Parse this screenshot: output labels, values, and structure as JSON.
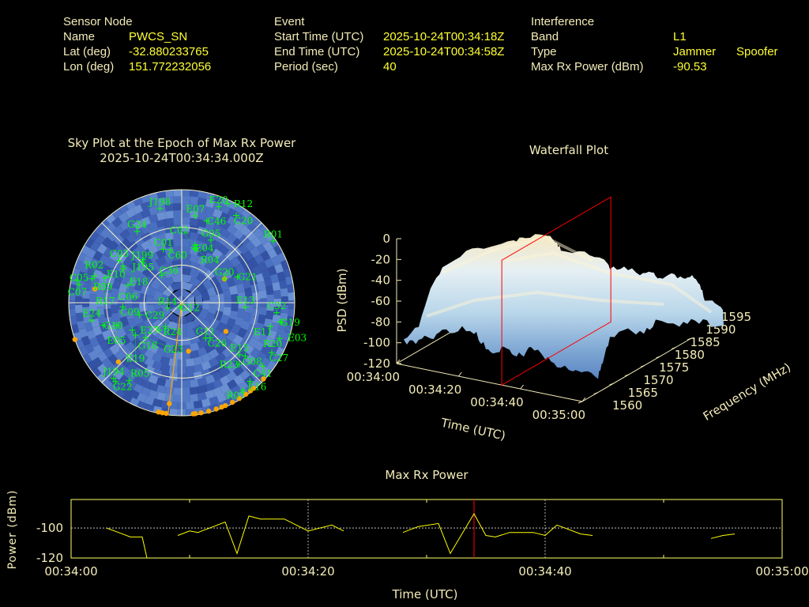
{
  "header": {
    "sensor": {
      "title": "Sensor Node",
      "name_label": "Name",
      "name": "PWCS_SN",
      "lat_label": "Lat (deg)",
      "lat": "-32.880233765",
      "lon_label": "Lon (deg)",
      "lon": "151.772232056"
    },
    "event": {
      "title": "Event",
      "start_label": "Start Time (UTC)",
      "start": "2025-10-24T00:34:18Z",
      "end_label": "End Time (UTC)",
      "end": "2025-10-24T00:34:58Z",
      "period_label": "Period (sec)",
      "period": "40"
    },
    "interference": {
      "title": "Interference",
      "band_label": "Band",
      "band": "L1",
      "type_label": "Type",
      "type_jammer": "Jammer",
      "type_spoofer": "Spoofer",
      "power_label": "Max Rx Power (dBm)",
      "power": "-90.53"
    }
  },
  "colors": {
    "label": "#f3ecb8",
    "value": "#ffff33",
    "satellite": "#00ff00",
    "interference": "#ffa500",
    "epoch_marker": "#ff0000",
    "sky_background": "#4a6fc0"
  },
  "skyplot": {
    "title": "Sky Plot at the Epoch of Max Rx Power",
    "epoch": "2025-10-24T00:34:34.000Z",
    "elevation_rings": [
      0,
      30,
      60
    ],
    "direction_line_az": 187,
    "satellites": [
      {
        "id": "J198",
        "az": 347,
        "el": 13
      },
      {
        "id": "E07",
        "az": 9,
        "el": 20
      },
      {
        "id": "C46",
        "az": 17,
        "el": 22
      },
      {
        "id": "E20",
        "az": 21,
        "el": 8
      },
      {
        "id": "R12",
        "az": 25,
        "el": 3
      },
      {
        "id": "C20",
        "az": 32,
        "el": 8
      },
      {
        "id": "G24",
        "az": 328,
        "el": 23
      },
      {
        "id": "G05",
        "az": 25,
        "el": 35
      },
      {
        "id": "R01",
        "az": 56,
        "el": 2
      },
      {
        "id": "C01",
        "az": 341,
        "el": 45
      },
      {
        "id": "C60",
        "az": 348,
        "el": 47
      },
      {
        "id": "E04",
        "az": 13,
        "el": 45
      },
      {
        "id": "R04",
        "az": 14,
        "el": 46
      },
      {
        "id": "C02",
        "az": 13,
        "el": 43
      },
      {
        "id": "C03",
        "az": 304,
        "el": 30
      },
      {
        "id": "J199",
        "az": 316,
        "el": 45
      },
      {
        "id": "J195",
        "az": 318,
        "el": 44
      },
      {
        "id": "E10",
        "az": 300,
        "el": 36
      },
      {
        "id": "E18",
        "az": 302,
        "el": 35
      },
      {
        "id": "C36",
        "az": 324,
        "el": 63
      },
      {
        "id": "C05",
        "az": 280,
        "el": 7
      },
      {
        "id": "C07",
        "az": 282,
        "el": 5
      },
      {
        "id": "R09",
        "az": 285,
        "el": 16
      },
      {
        "id": "R02",
        "az": 287,
        "el": 17
      },
      {
        "id": "R17",
        "az": 288,
        "el": 26
      },
      {
        "id": "C06",
        "az": 288,
        "el": 45
      },
      {
        "id": "C09",
        "az": 266,
        "el": 43
      },
      {
        "id": "C29",
        "az": 254,
        "el": 55
      },
      {
        "id": "R14",
        "az": 249,
        "el": 78
      },
      {
        "id": "R24",
        "az": 214,
        "el": 67
      },
      {
        "id": "E27",
        "az": 219,
        "el": 62
      },
      {
        "id": "G12",
        "az": 200,
        "el": 86
      },
      {
        "id": "E24",
        "az": 259,
        "el": 17
      },
      {
        "id": "G10",
        "az": 254,
        "el": 25
      },
      {
        "id": "E05",
        "az": 251,
        "el": 35
      },
      {
        "id": "G18",
        "az": 241,
        "el": 45
      },
      {
        "id": "E19",
        "az": 235,
        "el": 45
      },
      {
        "id": "G23",
        "az": 226,
        "el": 50
      },
      {
        "id": "G11",
        "az": 146,
        "el": 56
      },
      {
        "id": "C26",
        "az": 141,
        "el": 54
      },
      {
        "id": "G20",
        "az": 61,
        "el": 51
      },
      {
        "id": "G21",
        "az": 65,
        "el": 41
      },
      {
        "id": "E13",
        "az": 94,
        "el": 39
      },
      {
        "id": "C32",
        "az": 96,
        "el": 14
      },
      {
        "id": "G19",
        "az": 101,
        "el": 10
      },
      {
        "id": "E11",
        "az": 105,
        "el": 17
      },
      {
        "id": "E03",
        "az": 101,
        "el": 9
      },
      {
        "id": "R20",
        "az": 110,
        "el": 7
      },
      {
        "id": "C27",
        "az": 119,
        "el": 8
      },
      {
        "id": "E15",
        "az": 132,
        "el": 28
      },
      {
        "id": "G08",
        "az": 130,
        "el": 24
      },
      {
        "id": "R23",
        "az": 137,
        "el": 23
      },
      {
        "id": "C41",
        "az": 128,
        "el": 8
      },
      {
        "id": "E16",
        "az": 139,
        "el": 7
      },
      {
        "id": "R07",
        "az": 145,
        "el": 5
      },
      {
        "id": "J194",
        "az": 222,
        "el": 9
      },
      {
        "id": "G22",
        "az": 220,
        "el": 8
      },
      {
        "id": "R05",
        "az": 214,
        "el": 15
      }
    ],
    "interference_points": [
      {
        "az": 279,
        "el": 20
      },
      {
        "az": 251,
        "el": 0
      },
      {
        "az": 227,
        "el": 21
      },
      {
        "az": 172,
        "el": 51
      },
      {
        "az": 123,
        "el": 48
      },
      {
        "az": 61,
        "el": 51
      },
      {
        "az": 133,
        "el": 1
      },
      {
        "az": 140,
        "el": 1
      },
      {
        "az": 142,
        "el": 1
      },
      {
        "az": 145,
        "el": 1
      },
      {
        "az": 149,
        "el": 1
      },
      {
        "az": 153,
        "el": 1
      },
      {
        "az": 157,
        "el": 1
      },
      {
        "az": 159,
        "el": 1
      },
      {
        "az": 162,
        "el": 1
      },
      {
        "az": 166,
        "el": 1
      },
      {
        "az": 170,
        "el": 1
      },
      {
        "az": 173,
        "el": 1
      },
      {
        "az": 174,
        "el": 1
      },
      {
        "az": 188,
        "el": 1
      },
      {
        "az": 190,
        "el": 1
      },
      {
        "az": 192,
        "el": 1
      },
      {
        "az": 187,
        "el": 9
      }
    ]
  },
  "waterfall": {
    "title": "Waterfall Plot",
    "zlabel": "PSD (dBm)",
    "xlabel": "Time (UTC)",
    "ylabel": "Frequency (MHz)",
    "z_ticks": [
      "0",
      "-20",
      "-40",
      "-60",
      "-80",
      "-100",
      "-120"
    ],
    "time_ticks": [
      "00:34:00",
      "00:34:20",
      "00:34:40",
      "00:35:00"
    ],
    "freq_ticks": [
      "1560",
      "1565",
      "1570",
      "1575",
      "1580",
      "1585",
      "1590",
      "1595"
    ],
    "marker_time": "00:34:34"
  },
  "chart_data": {
    "type": "line",
    "title": "Max Rx Power",
    "xlabel": "Time (UTC)",
    "ylabel": "Power (dBm)",
    "x_ticks": [
      "00:34:00",
      "00:34:20",
      "00:34:40",
      "00:35:00"
    ],
    "y_ticks": [
      "-100",
      "-120"
    ],
    "xlim": [
      "00:34:00",
      "00:35:00"
    ],
    "ylim": [
      -120,
      -81
    ],
    "grid": true,
    "marker_time": "00:34:34",
    "segments": [
      [
        [
          "00:34:03",
          -100
        ],
        [
          "00:34:04",
          -103
        ],
        [
          "00:34:05",
          -106
        ],
        [
          "00:34:06",
          -106
        ],
        [
          "00:34:06.4",
          -120
        ]
      ],
      [
        [
          "00:34:09",
          -105
        ],
        [
          "00:34:10",
          -102
        ],
        [
          "00:34:10.7",
          -103
        ],
        [
          "00:34:13",
          -96
        ],
        [
          "00:34:14",
          -117
        ],
        [
          "00:34:15",
          -92
        ],
        [
          "00:34:16",
          -94
        ],
        [
          "00:34:17",
          -94
        ],
        [
          "00:34:18",
          -94
        ],
        [
          "00:34:20",
          -102
        ],
        [
          "00:34:22",
          -98
        ],
        [
          "00:34:23",
          -102
        ]
      ],
      [
        [
          "00:34:28",
          -103
        ],
        [
          "00:34:29.3",
          -99
        ],
        [
          "00:34:31",
          -97
        ],
        [
          "00:34:32",
          -117
        ],
        [
          "00:34:34",
          -90.5
        ],
        [
          "00:34:35",
          -105
        ],
        [
          "00:34:35.8",
          -106
        ],
        [
          "00:34:37",
          -103
        ],
        [
          "00:34:39",
          -103
        ],
        [
          "00:34:40",
          -105
        ],
        [
          "00:34:41",
          -98
        ],
        [
          "00:34:43",
          -104
        ],
        [
          "00:34:44",
          -105
        ]
      ],
      [
        [
          "00:34:54",
          -107
        ],
        [
          "00:34:55",
          -105
        ],
        [
          "00:34:56",
          -104
        ]
      ]
    ]
  }
}
